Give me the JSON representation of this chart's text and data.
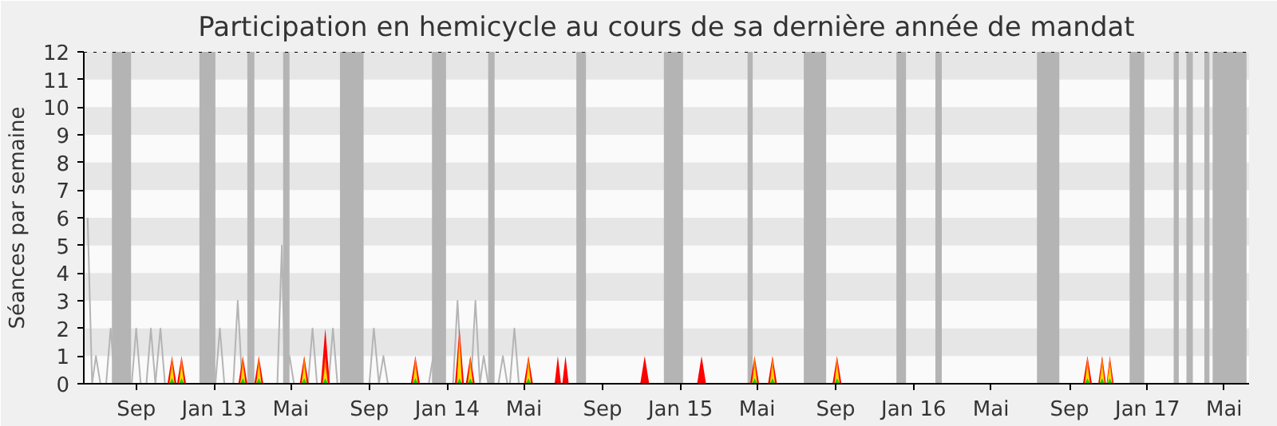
{
  "chart_data": {
    "type": "area",
    "title": "Participation en hemicycle au cours de sa dernière année de mandat",
    "ylabel": "Séances par semaine",
    "xlim": [
      "2012-06-11",
      "2017-06-09"
    ],
    "xticks": [
      {
        "value": "2012-09-01",
        "label": "Sep"
      },
      {
        "value": "2013-01-01",
        "label": "Jan 13"
      },
      {
        "value": "2013-05-01",
        "label": "Mai"
      },
      {
        "value": "2013-09-01",
        "label": "Sep"
      },
      {
        "value": "2014-01-01",
        "label": "Jan 14"
      },
      {
        "value": "2014-05-01",
        "label": "Mai"
      },
      {
        "value": "2014-09-01",
        "label": "Sep"
      },
      {
        "value": "2015-01-01",
        "label": "Jan 15"
      },
      {
        "value": "2015-05-01",
        "label": "Mai"
      },
      {
        "value": "2015-09-01",
        "label": "Sep"
      },
      {
        "value": "2016-01-01",
        "label": "Jan 16"
      },
      {
        "value": "2016-05-01",
        "label": "Mai"
      },
      {
        "value": "2016-09-01",
        "label": "Sep"
      },
      {
        "value": "2017-01-01",
        "label": "Jan 17"
      },
      {
        "value": "2017-05-01",
        "label": "Mai"
      }
    ],
    "ylim": [
      0,
      12
    ],
    "yticks": [
      0,
      1,
      2,
      3,
      4,
      5,
      6,
      7,
      8,
      9,
      10,
      11,
      12
    ],
    "grid": false,
    "x": [
      "2012-10-23",
      "2012-10-27",
      "2012-10-31",
      "2012-11-07",
      "2012-11-11",
      "2012-11-15",
      "2013-02-11",
      "2013-02-15",
      "2013-02-19",
      "2013-03-08",
      "2013-03-12",
      "2013-03-16",
      "2013-05-18",
      "2013-05-22",
      "2013-05-26",
      "2013-06-20",
      "2013-06-24",
      "2013-06-28",
      "2013-11-08",
      "2013-11-12",
      "2013-11-16",
      "2014-01-16",
      "2014-01-20",
      "2014-01-24",
      "2014-02-02",
      "2014-02-06",
      "2014-02-10",
      "2014-05-04",
      "2014-05-08",
      "2014-05-12",
      "2015-04-23",
      "2015-04-27",
      "2015-05-01",
      "2015-05-21",
      "2015-05-25",
      "2015-05-29",
      "2015-08-30",
      "2015-09-03",
      "2015-09-07",
      "2016-09-25",
      "2016-09-29",
      "2016-10-03",
      "2016-10-18",
      "2016-10-22",
      "2016-10-26",
      "2016-10-30",
      "2016-11-03",
      "2016-11-07"
    ],
    "series": [
      {
        "type": "line",
        "color": "#b4b4b4",
        "x": [
          "2012-06-17",
          "2012-06-24",
          "2012-06-30",
          "2012-07-07",
          "2012-07-16",
          "2012-07-23",
          "2012-07-30",
          "2012-08-25",
          "2012-09-01",
          "2012-09-08",
          "2012-09-17",
          "2012-09-24",
          "2012-10-01",
          "2012-10-09",
          "2012-10-16",
          "2013-01-03",
          "2013-01-10",
          "2013-01-17",
          "2013-01-31",
          "2013-02-07",
          "2013-02-14",
          "2013-04-10",
          "2013-04-17",
          "2013-04-22",
          "2013-04-29",
          "2013-05-06",
          "2013-05-28",
          "2013-06-04",
          "2013-06-11",
          "2013-06-29",
          "2013-07-06",
          "2013-07-13",
          "2013-09-01",
          "2013-09-08",
          "2013-09-16",
          "2013-09-23",
          "2013-09-30",
          "2013-12-03",
          "2013-12-10",
          "2013-12-17",
          "2014-01-10",
          "2014-01-17",
          "2014-01-24",
          "2014-02-07",
          "2014-02-14",
          "2014-02-21",
          "2014-02-27",
          "2014-03-06",
          "2014-03-22",
          "2014-03-29",
          "2014-04-05",
          "2014-04-09",
          "2014-04-16",
          "2014-04-23"
        ],
        "values": [
          6,
          0,
          1,
          0,
          0,
          2,
          0,
          0,
          2,
          0,
          0,
          2,
          0,
          2,
          0,
          0,
          2,
          0,
          0,
          3,
          0,
          0,
          5,
          0,
          1,
          0,
          0,
          2,
          0,
          0,
          2,
          0,
          0,
          2,
          0,
          1,
          0,
          0,
          1,
          0,
          0,
          3,
          0,
          0,
          3,
          0,
          1,
          0,
          0,
          1,
          0,
          0,
          2,
          0
        ]
      },
      {
        "color": "#ff0000",
        "x": [
          "2012-10-20",
          "2012-10-27",
          "2012-11-03",
          "2012-11-04",
          "2012-11-11",
          "2012-11-18",
          "2013-02-08",
          "2013-02-15",
          "2013-02-22",
          "2013-03-05",
          "2013-03-12",
          "2013-03-19",
          "2013-05-15",
          "2013-05-22",
          "2013-05-29",
          "2013-06-17",
          "2013-06-24",
          "2013-07-01",
          "2013-11-05",
          "2013-11-12",
          "2013-11-19",
          "2014-01-13",
          "2014-01-20",
          "2014-01-27",
          "2014-01-30",
          "2014-02-06",
          "2014-02-13",
          "2014-05-01",
          "2014-05-08",
          "2014-05-15",
          "2014-06-18",
          "2014-06-23",
          "2014-06-28",
          "2014-06-30",
          "2014-07-05",
          "2014-07-10",
          "2014-10-30",
          "2014-11-06",
          "2014-11-13",
          "2015-01-27",
          "2015-02-03",
          "2015-02-10",
          "2015-04-20",
          "2015-04-27",
          "2015-05-04",
          "2015-05-18",
          "2015-05-25",
          "2015-06-01",
          "2015-08-27",
          "2015-09-03",
          "2015-09-10",
          "2016-09-22",
          "2016-09-29",
          "2016-10-06",
          "2016-10-16",
          "2016-10-22",
          "2016-10-28",
          "2016-10-29",
          "2016-11-03",
          "2016-11-09"
        ],
        "values": [
          0,
          1,
          0,
          0,
          1,
          0,
          0,
          1,
          0,
          0,
          1,
          0,
          0,
          1,
          0,
          0,
          2,
          0,
          0,
          1,
          0,
          0,
          2,
          0,
          0,
          1,
          0,
          0,
          1,
          0,
          0,
          1,
          0,
          0,
          1,
          0,
          0,
          1,
          0,
          0,
          1,
          0,
          0,
          1,
          0,
          0,
          1,
          0,
          0,
          1,
          0,
          0,
          1,
          0,
          0,
          1,
          0,
          0,
          1,
          0
        ]
      },
      {
        "color": "#ff8800",
        "values": [
          0,
          1,
          0,
          0,
          1,
          0,
          0,
          1,
          0,
          0,
          1,
          0,
          0,
          1,
          0,
          0,
          1,
          0,
          0,
          1,
          0,
          0,
          2,
          0,
          0,
          1,
          0,
          0,
          1,
          0,
          0,
          1,
          0,
          0,
          1,
          0,
          0,
          1,
          0,
          0,
          1,
          0,
          0,
          1,
          0,
          0,
          1,
          0
        ]
      },
      {
        "color": "#ffdd00",
        "values": [
          0,
          0.6,
          0,
          0,
          0.6,
          0,
          0,
          0.6,
          0,
          0,
          0.6,
          0,
          0,
          0.6,
          0,
          0,
          0.6,
          0,
          0,
          0.6,
          0,
          0,
          1.4,
          0,
          0,
          0.6,
          0,
          0,
          0.6,
          0,
          0,
          0.6,
          0,
          0,
          0.6,
          0,
          0,
          0.6,
          0,
          0,
          0.6,
          0,
          0,
          0.6,
          0,
          0,
          0.6,
          0
        ]
      },
      {
        "color": "#22cc00",
        "values": [
          0,
          0.2,
          0,
          0,
          0.2,
          0,
          0,
          0.2,
          0,
          0,
          0.2,
          0,
          0,
          0.2,
          0,
          0,
          0.2,
          0,
          0,
          0.2,
          0,
          0,
          0.2,
          0,
          0,
          0.2,
          0,
          0,
          0.2,
          0,
          0,
          0.2,
          0,
          0,
          0.2,
          0,
          0,
          0.2,
          0,
          0,
          0.2,
          0,
          0,
          0.2,
          0,
          0,
          0.2,
          0
        ]
      }
    ],
    "bands": [
      {
        "axis": "y",
        "from": 1,
        "to": 2,
        "color": "#e6e6e6"
      },
      {
        "axis": "y",
        "from": 3,
        "to": 4,
        "color": "#e6e6e6"
      },
      {
        "axis": "y",
        "from": 5,
        "to": 6,
        "color": "#e6e6e6"
      },
      {
        "axis": "y",
        "from": 7,
        "to": 8,
        "color": "#e6e6e6"
      },
      {
        "axis": "y",
        "from": 9,
        "to": 10,
        "color": "#e6e6e6"
      },
      {
        "axis": "y",
        "from": 11,
        "to": 12,
        "color": "#e6e6e6"
      },
      {
        "axis": "x",
        "from": "2012-07-25",
        "to": "2012-08-24",
        "color": "#b4b4b4"
      },
      {
        "axis": "x",
        "from": "2012-12-09",
        "to": "2013-01-03",
        "color": "#b4b4b4"
      },
      {
        "axis": "x",
        "from": "2013-02-22",
        "to": "2013-03-05",
        "color": "#b4b4b4"
      },
      {
        "axis": "x",
        "from": "2013-04-19",
        "to": "2013-04-29",
        "color": "#b4b4b4"
      },
      {
        "axis": "x",
        "from": "2013-07-17",
        "to": "2013-08-23",
        "color": "#b4b4b4"
      },
      {
        "axis": "x",
        "from": "2013-12-08",
        "to": "2013-12-30",
        "color": "#b4b4b4"
      },
      {
        "axis": "x",
        "from": "2014-03-06",
        "to": "2014-03-16",
        "color": "#b4b4b4"
      },
      {
        "axis": "x",
        "from": "2014-07-22",
        "to": "2014-08-06",
        "color": "#b4b4b4"
      },
      {
        "axis": "x",
        "from": "2014-12-06",
        "to": "2015-01-05",
        "color": "#b4b4b4"
      },
      {
        "axis": "x",
        "from": "2015-04-16",
        "to": "2015-04-24",
        "color": "#b4b4b4"
      },
      {
        "axis": "x",
        "from": "2015-07-13",
        "to": "2015-08-17",
        "color": "#b4b4b4"
      },
      {
        "axis": "x",
        "from": "2015-12-05",
        "to": "2015-12-20",
        "color": "#b4b4b4"
      },
      {
        "axis": "x",
        "from": "2016-02-04",
        "to": "2016-02-14",
        "color": "#b4b4b4"
      },
      {
        "axis": "x",
        "from": "2016-07-12",
        "to": "2016-08-16",
        "color": "#b4b4b4"
      },
      {
        "axis": "x",
        "from": "2016-12-04",
        "to": "2016-12-27",
        "color": "#b4b4b4"
      },
      {
        "axis": "x",
        "from": "2017-02-11",
        "to": "2017-02-19",
        "color": "#b4b4b4"
      },
      {
        "axis": "x",
        "from": "2017-03-03",
        "to": "2017-03-13",
        "color": "#b4b4b4"
      },
      {
        "axis": "x",
        "from": "2017-03-31",
        "to": "2017-04-08",
        "color": "#b4b4b4"
      },
      {
        "axis": "x",
        "from": "2017-04-13",
        "to": "2017-06-05",
        "color": "#b4b4b4"
      }
    ],
    "ref_lines": [
      {
        "axis": "y",
        "value": 12,
        "color": "#000000",
        "line_style": "dotted"
      }
    ]
  }
}
